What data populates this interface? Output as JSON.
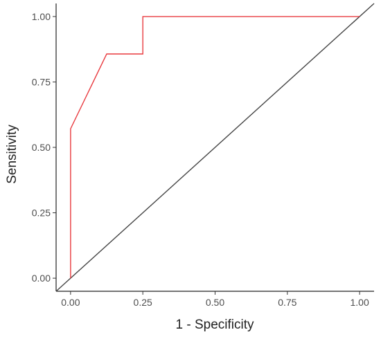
{
  "chart_data": {
    "type": "line",
    "title": "",
    "xlabel": "1 - Specificity",
    "ylabel": "Sensitivity",
    "xlim": [
      -0.05,
      1.05
    ],
    "ylim": [
      -0.05,
      1.05
    ],
    "x_ticks": [
      0,
      0.25,
      0.5,
      0.75,
      1
    ],
    "x_tick_labels": [
      "0.00",
      "0.25",
      "0.50",
      "0.75",
      "1.00"
    ],
    "y_ticks": [
      0,
      0.25,
      0.5,
      0.75,
      1
    ],
    "y_tick_labels": [
      "0.00",
      "0.25",
      "0.50",
      "0.75",
      "1.00"
    ],
    "grid": false,
    "series": [
      {
        "color": "#e8383d",
        "x": [
          0,
          0,
          0.125,
          0.25,
          0.25,
          1
        ],
        "y": [
          0,
          0.571,
          0.857,
          0.857,
          1,
          1
        ]
      },
      {
        "color": "#444444",
        "x": [
          -0.05,
          1.05
        ],
        "y": [
          -0.05,
          1.05
        ]
      }
    ]
  }
}
